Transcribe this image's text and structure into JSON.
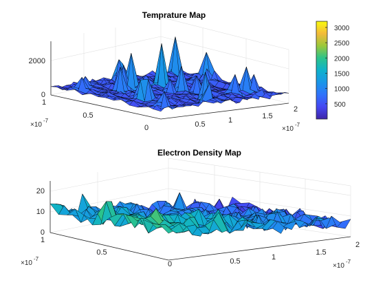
{
  "colors": {
    "background": "#ffffff",
    "axis": "#262626",
    "grid": "#e0e0e0",
    "mesh_edge": "#000000"
  },
  "colormap": "parula",
  "chart_data": [
    {
      "type": "surface",
      "title": "Temprature Map",
      "xlabel": "",
      "ylabel": "",
      "zlabel": "",
      "x_range": [
        0,
        2e-07
      ],
      "y_range": [
        0,
        1e-07
      ],
      "zlim": [
        0,
        3000
      ],
      "x_ticks": [
        "0.5",
        "1",
        "1.5",
        "2"
      ],
      "y_ticks": [
        "0",
        "0.5",
        "1"
      ],
      "z_ticks": [
        "0",
        "2000"
      ],
      "x_exponent": "-7",
      "y_exponent": "-7",
      "exponent_base": "×10",
      "grid": true,
      "surface": {
        "base_level": 350,
        "noise": 320,
        "peak_max": 3000,
        "grid_nx": 34,
        "grid_ny": 14
      },
      "colorbar": {
        "min": 0,
        "max": 3200,
        "ticks": [
          "500",
          "1000",
          "1500",
          "2000",
          "2500",
          "3000"
        ]
      }
    },
    {
      "type": "surface",
      "title": "Electron Density Map",
      "xlabel": "",
      "ylabel": "",
      "zlabel": "",
      "x_range": [
        0,
        2e-07
      ],
      "y_range": [
        0,
        1e-07
      ],
      "zlim": [
        0,
        25
      ],
      "x_ticks": [
        "0",
        "0.5",
        "1",
        "1.5",
        "2"
      ],
      "y_ticks": [
        "0.5",
        "1"
      ],
      "z_ticks": [
        "0",
        "10",
        "20"
      ],
      "x_exponent": "-7",
      "y_exponent": "-7",
      "exponent_base": "×10",
      "grid": true,
      "surface": {
        "trend_start": 15,
        "trend_end": 2,
        "noise": 4,
        "peak_max": 26,
        "grid_nx": 34,
        "grid_ny": 14
      }
    }
  ]
}
